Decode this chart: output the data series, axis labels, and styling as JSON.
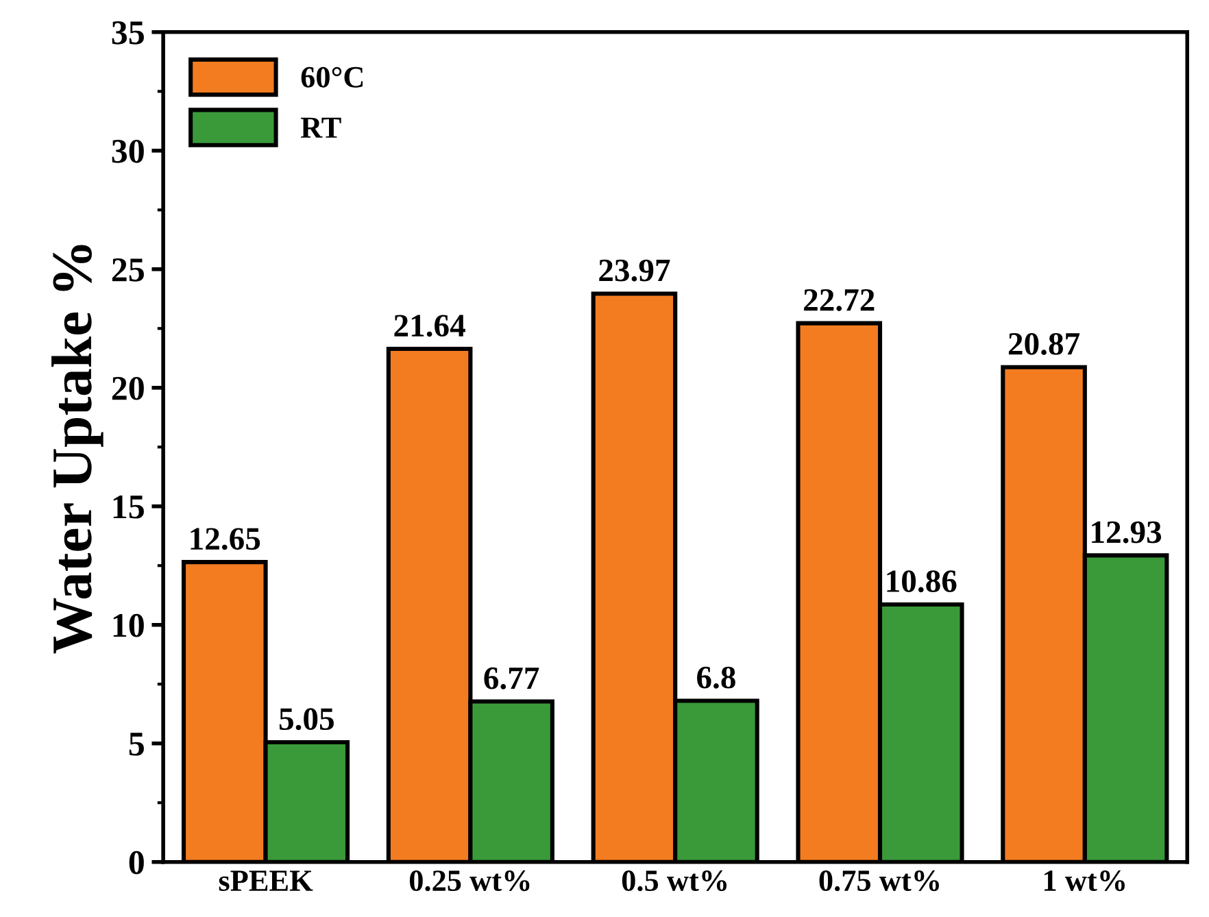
{
  "chart_data": {
    "type": "bar",
    "ylabel": "Water Uptake %",
    "categories": [
      "sPEEK",
      "0.25 wt%",
      "0.5 wt%",
      "0.75 wt%",
      "1 wt%"
    ],
    "series": [
      {
        "name": "60°C",
        "color": "#f47c20",
        "values": [
          12.65,
          21.64,
          23.97,
          22.72,
          20.87
        ]
      },
      {
        "name": "RT",
        "color": "#3a9a3a",
        "values": [
          5.05,
          6.77,
          6.8,
          10.86,
          12.93
        ]
      }
    ],
    "ylim": [
      0,
      35
    ],
    "yticks": [
      0,
      5,
      10,
      15,
      20,
      25,
      30,
      35
    ],
    "data_labels": true,
    "legend": "top left",
    "grid": false
  }
}
